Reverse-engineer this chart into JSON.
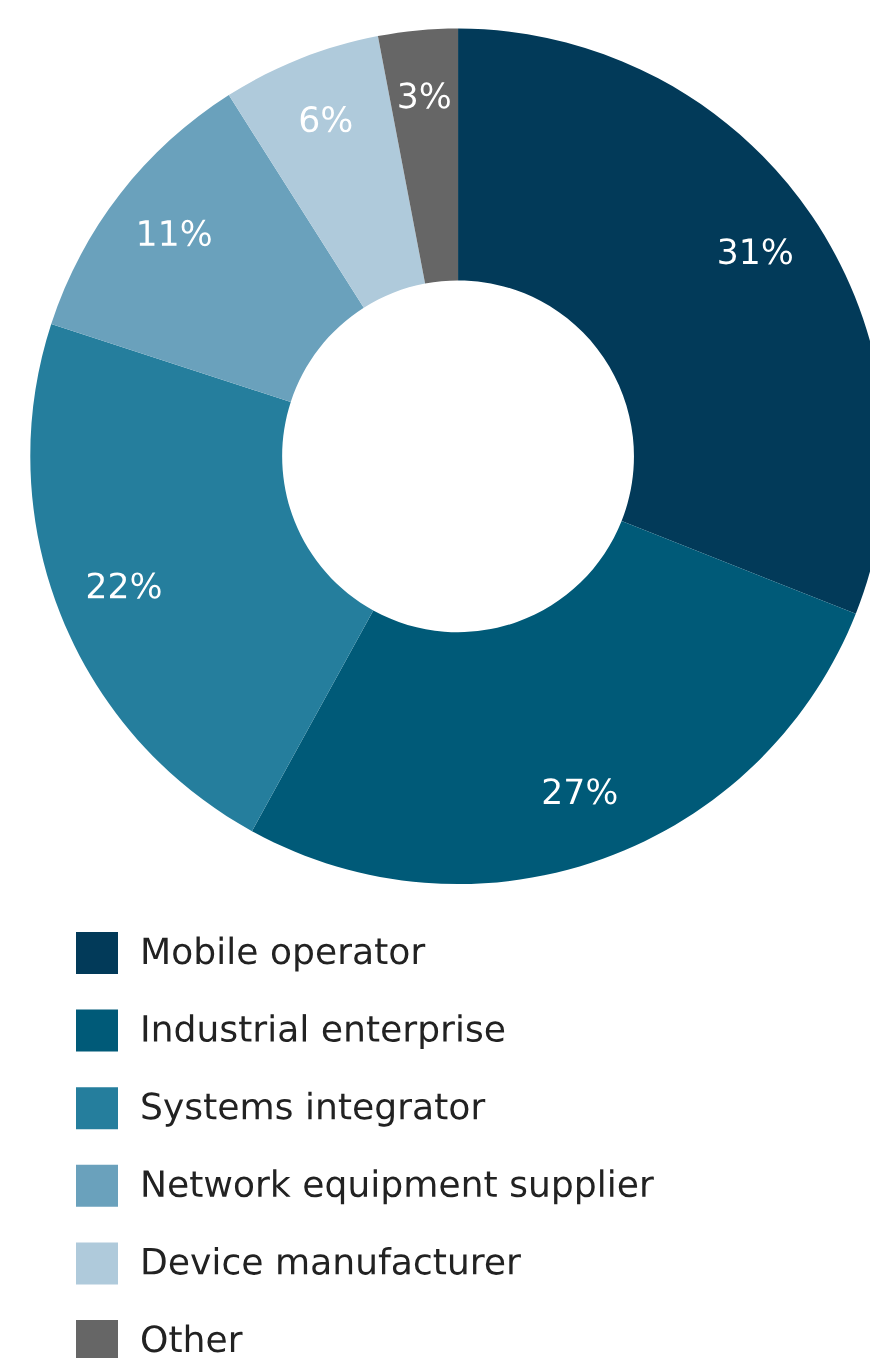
{
  "chart_data": {
    "type": "donut",
    "categories": [
      "Mobile operator",
      "Industrial enterprise",
      "Systems integrator",
      "Network equipment supplier",
      "Device manufacturer",
      "Other"
    ],
    "values": [
      31,
      27,
      22,
      11,
      6,
      3
    ],
    "value_labels": [
      "31%",
      "27%",
      "22%",
      "11%",
      "6%",
      "3%"
    ],
    "colors": [
      "#023a59",
      "#005a78",
      "#257e9d",
      "#6aa1bc",
      "#afcadb",
      "#666666"
    ],
    "legend": "bottom"
  }
}
